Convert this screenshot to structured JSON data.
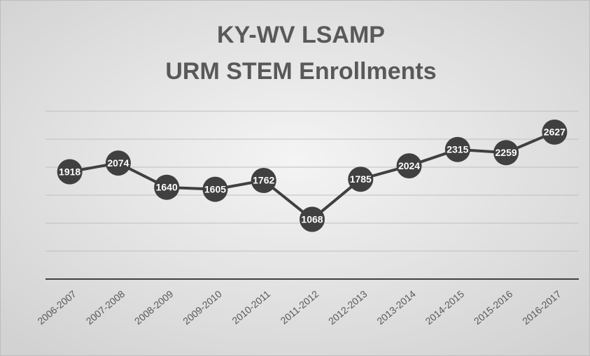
{
  "chart_data": {
    "type": "line",
    "title": [
      "KY-WV LSAMP",
      "URM STEM Enrollments"
    ],
    "categories": [
      "2006-2007",
      "2007-2008",
      "2008-2009",
      "2009-2010",
      "2010-2011",
      "2011-2012",
      "2012-2013",
      "2013-2014",
      "2014-2015",
      "2015-2016",
      "2016-2017"
    ],
    "series": [
      {
        "name": "URM STEM Enrollments",
        "color": "#404040",
        "values": [
          1918,
          2074,
          1640,
          1605,
          1762,
          1068,
          1785,
          2024,
          2315,
          2259,
          2627
        ]
      }
    ],
    "ylim": [
      0,
      3000
    ],
    "yticks": [
      0,
      500,
      1000,
      1500,
      2000,
      2500,
      3000
    ],
    "grid": true
  }
}
